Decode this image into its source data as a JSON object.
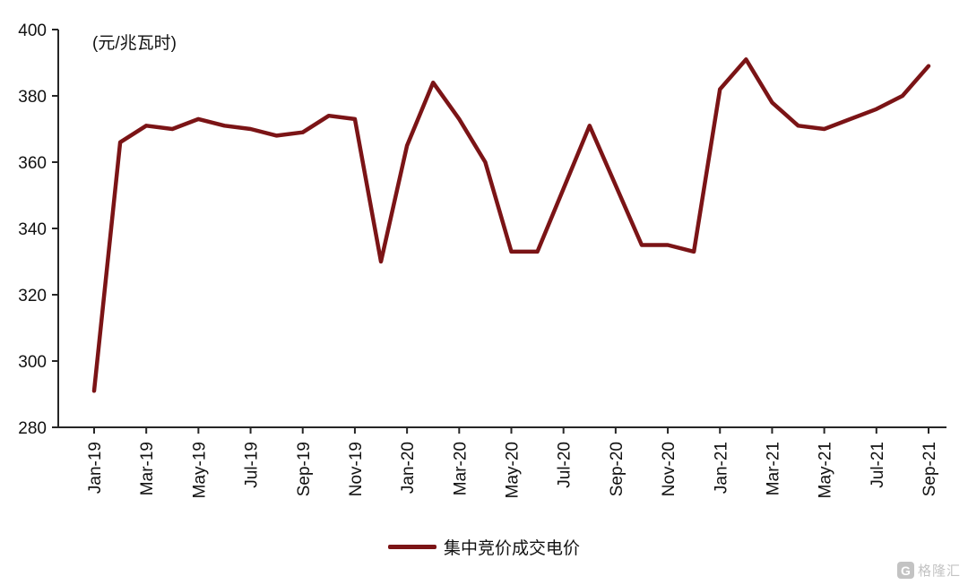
{
  "chart_data": {
    "type": "line",
    "title": "",
    "unit_label": "(元/兆瓦时)",
    "x": [
      "Jan-19",
      "Feb-19",
      "Mar-19",
      "Apr-19",
      "May-19",
      "Jun-19",
      "Jul-19",
      "Aug-19",
      "Sep-19",
      "Oct-19",
      "Nov-19",
      "Dec-19",
      "Jan-20",
      "Feb-20",
      "Mar-20",
      "Apr-20",
      "May-20",
      "Jun-20",
      "Jul-20",
      "Aug-20",
      "Sep-20",
      "Oct-20",
      "Nov-20",
      "Dec-20",
      "Jan-21",
      "Feb-21",
      "Mar-21",
      "Apr-21",
      "May-21",
      "Jun-21",
      "Jul-21",
      "Aug-21",
      "Sep-21"
    ],
    "series": [
      {
        "name": "集中竞价成交电价",
        "color": "#7B1416",
        "values": [
          291,
          366,
          371,
          370,
          373,
          371,
          370,
          368,
          369,
          374,
          373,
          330,
          365,
          384,
          373,
          360,
          333,
          333,
          352,
          371,
          353,
          335,
          335,
          333,
          382,
          391,
          378,
          371,
          370,
          373,
          376,
          380,
          389
        ]
      }
    ],
    "ylim": [
      280,
      400
    ],
    "yticks": [
      280,
      300,
      320,
      340,
      360,
      380,
      400
    ],
    "xtick_labels": [
      "Jan-19",
      "Mar-19",
      "May-19",
      "Jul-19",
      "Sep-19",
      "Nov-19",
      "Jan-20",
      "Mar-20",
      "May-20",
      "Jul-20",
      "Sep-20",
      "Nov-20",
      "Jan-21",
      "Mar-21",
      "May-21",
      "Jul-21",
      "Sep-21"
    ],
    "grid": false,
    "legend_position": "bottom"
  },
  "watermark": {
    "logo_letter": "G",
    "text": "格隆汇"
  },
  "colors": {
    "line": "#7B1416",
    "axis": "#262626",
    "text": "#111111",
    "watermark": "#b5b5b5"
  }
}
